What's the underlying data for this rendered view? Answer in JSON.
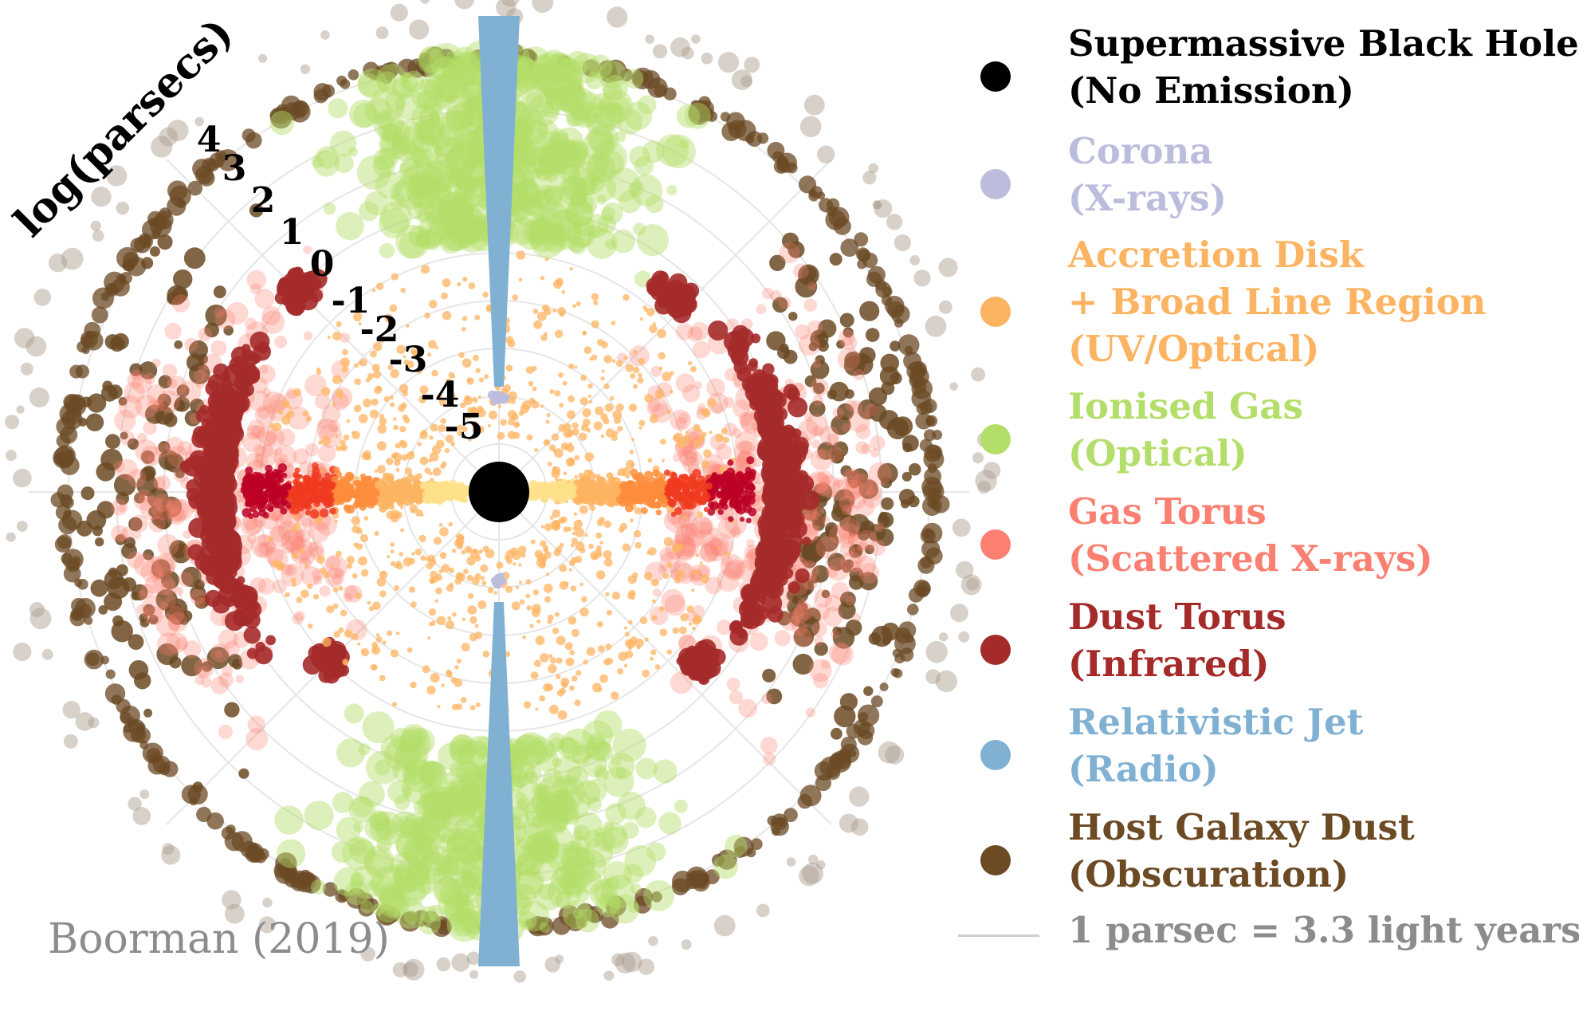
{
  "axis": {
    "label": "log(parsecs)",
    "ticks": [
      "4",
      "3",
      "2",
      "1",
      "0",
      "-1",
      "-2",
      "-3",
      "-4",
      "-5"
    ]
  },
  "legend": [
    {
      "key": "black-hole",
      "line1": "Supermassive Black Hole",
      "line2": "(No Emission)",
      "color": "#000000",
      "text_color": "#000000"
    },
    {
      "key": "corona",
      "line1": "Corona",
      "line2": "(X-rays)",
      "color": "#bcbddc",
      "text_color": "#bcbddc"
    },
    {
      "key": "accretion-disk",
      "line1": "Accretion Disk",
      "line2": "+ Broad Line Region",
      "line3": "(UV/Optical)",
      "color": "#fdb462",
      "text_color": "#fdb462"
    },
    {
      "key": "ionised-gas",
      "line1": "Ionised Gas",
      "line2": "(Optical)",
      "color": "#b3de69",
      "text_color": "#b3de69"
    },
    {
      "key": "gas-torus",
      "line1": "Gas Torus",
      "line2": "(Scattered X-rays)",
      "color": "#fb8072",
      "text_color": "#fb8072"
    },
    {
      "key": "dust-torus",
      "line1": "Dust Torus",
      "line2": "(Infrared)",
      "color": "#a52a2a",
      "text_color": "#a52a2a"
    },
    {
      "key": "relativistic-jet",
      "line1": "Relativistic Jet",
      "line2": "(Radio)",
      "color": "#80b1d3",
      "text_color": "#80b1d3"
    },
    {
      "key": "host-galaxy-dust",
      "line1": "Host Galaxy Dust",
      "line2": "(Obscuration)",
      "color": "#6b4a24",
      "text_color": "#6b4a24"
    }
  ],
  "scale_note": "1 parsec  =  3.3 light years",
  "credit": "Boorman (2019)"
}
